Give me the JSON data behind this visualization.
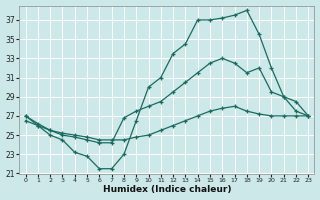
{
  "xlabel": "Humidex (Indice chaleur)",
  "bg_color": "#cce8e8",
  "grid_color": "#b8d8d8",
  "line_color": "#1a6b60",
  "xlim": [
    -0.5,
    23.5
  ],
  "ylim": [
    21,
    38.5
  ],
  "yticks": [
    21,
    23,
    25,
    27,
    29,
    31,
    33,
    35,
    37
  ],
  "xticks": [
    0,
    1,
    2,
    3,
    4,
    5,
    6,
    7,
    8,
    9,
    10,
    11,
    12,
    13,
    14,
    15,
    16,
    17,
    18,
    19,
    20,
    21,
    22,
    23
  ],
  "line1_y": [
    27.0,
    26.0,
    25.0,
    24.5,
    23.2,
    22.8,
    21.5,
    21.5,
    23.0,
    26.5,
    30.0,
    31.0,
    33.5,
    34.5,
    37.0,
    37.0,
    37.2,
    37.5,
    38.0,
    35.5,
    32.0,
    29.0,
    27.5,
    27.0
  ],
  "line2_y": [
    27.0,
    26.2,
    25.5,
    25.0,
    24.8,
    24.5,
    24.2,
    24.2,
    26.8,
    27.5,
    28.0,
    28.5,
    29.5,
    30.5,
    31.5,
    32.5,
    33.0,
    32.5,
    31.5,
    32.0,
    29.5,
    29.0,
    28.5,
    27.0
  ],
  "line3_y": [
    26.5,
    26.0,
    25.5,
    25.2,
    25.0,
    24.8,
    24.5,
    24.5,
    24.5,
    24.8,
    25.0,
    25.5,
    26.0,
    26.5,
    27.0,
    27.5,
    27.8,
    28.0,
    27.5,
    27.2,
    27.0,
    27.0,
    27.0,
    27.0
  ]
}
